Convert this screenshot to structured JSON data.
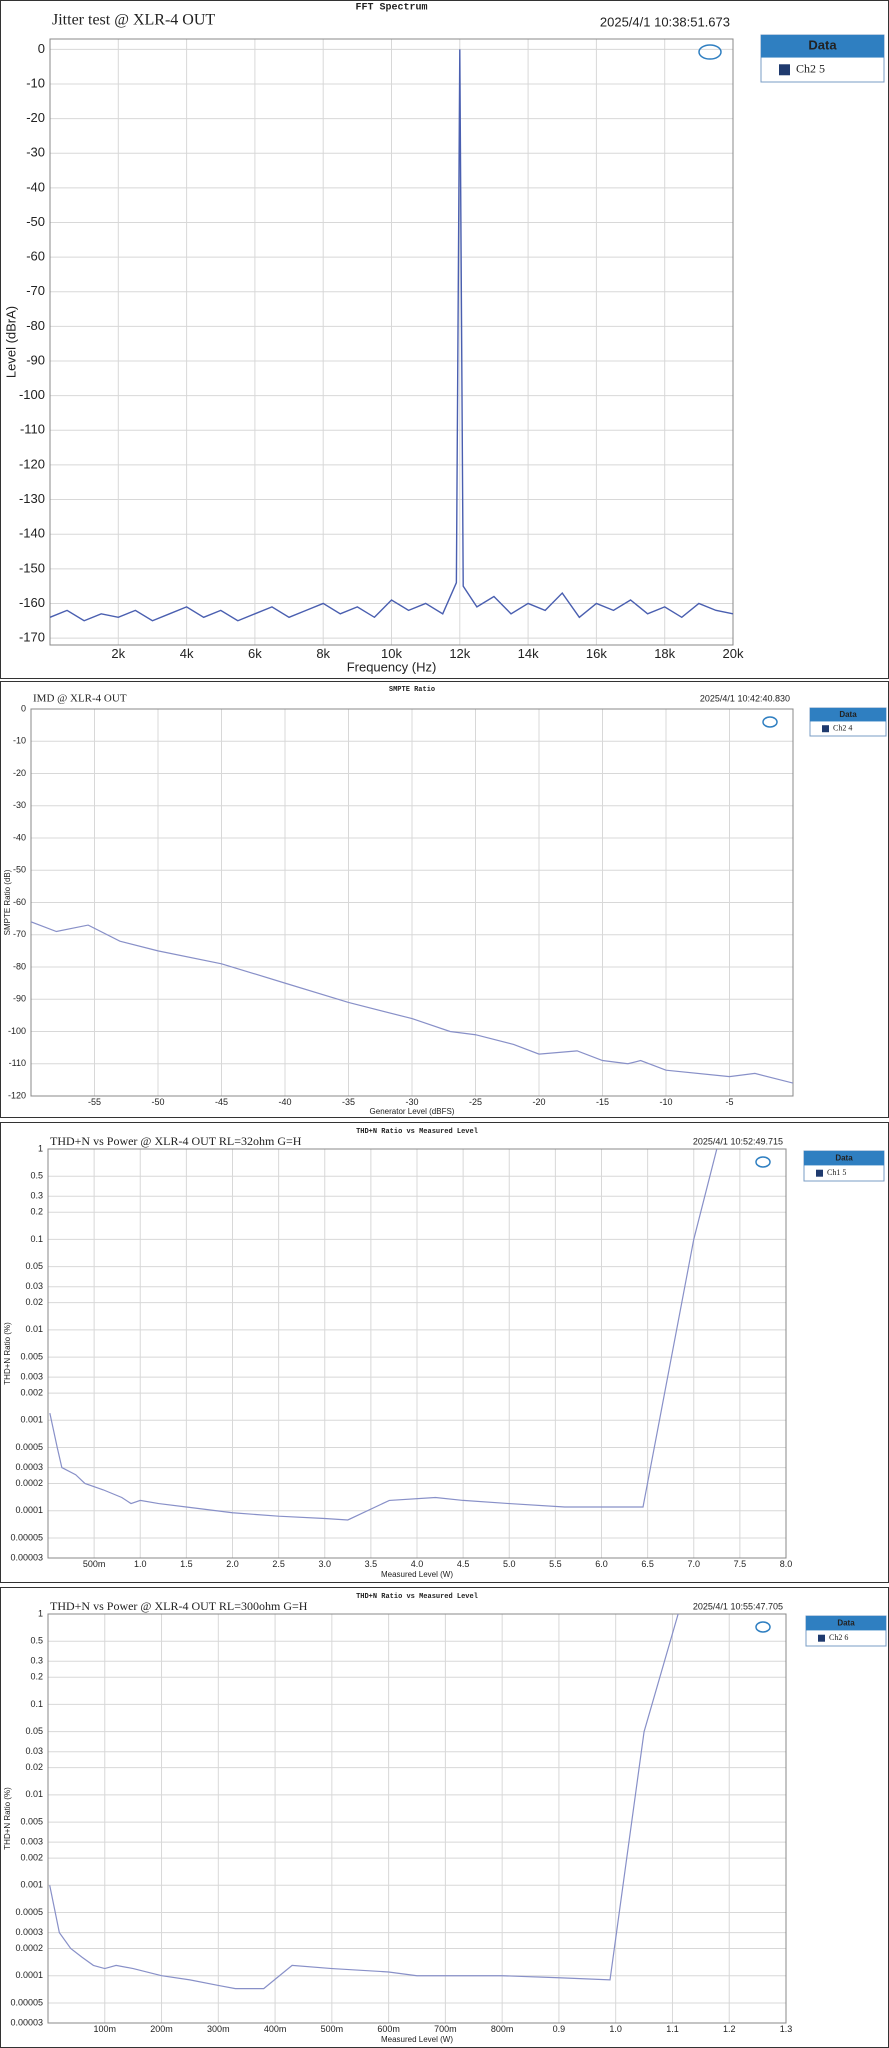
{
  "chart_data": [
    {
      "type": "line",
      "title": "FFT Spectrum",
      "subtitle": "Jitter test @ XLR-4  OUT",
      "timestamp": "2025/4/1 10:38:51.673",
      "xlabel": "Frequency (Hz)",
      "ylabel": "Level (dBrA)",
      "legend_title": "Data",
      "grid": true,
      "x": [
        0,
        500,
        1000,
        1500,
        2000,
        2500,
        3000,
        3500,
        4000,
        4500,
        5000,
        5500,
        6000,
        6500,
        7000,
        7500,
        8000,
        8500,
        9000,
        9500,
        10000,
        10500,
        11000,
        11500,
        11900,
        12000,
        12100,
        12500,
        13000,
        13500,
        14000,
        14500,
        15000,
        15500,
        16000,
        16500,
        17000,
        17500,
        18000,
        18500,
        19000,
        19500,
        20000
      ],
      "series": [
        {
          "name": "Ch2 5",
          "color": "#4a5fb0",
          "values": [
            -164,
            -162,
            -165,
            -163,
            -164,
            -162,
            -165,
            -163,
            -161,
            -164,
            -162,
            -165,
            -163,
            -161,
            -164,
            -162,
            -160,
            -163,
            -161,
            -164,
            -159,
            -162,
            -160,
            -163,
            -154,
            0,
            -155,
            -161,
            -158,
            -163,
            -160,
            -162,
            -157,
            -164,
            -160,
            -162,
            -159,
            -163,
            -161,
            -164,
            -160,
            -162,
            -163
          ]
        }
      ],
      "xlim": [
        0,
        20000
      ],
      "ylim": [
        -172,
        3
      ],
      "xticks": [
        {
          "value": 2000,
          "label": "2k"
        },
        {
          "value": 4000,
          "label": "4k"
        },
        {
          "value": 6000,
          "label": "6k"
        },
        {
          "value": 8000,
          "label": "8k"
        },
        {
          "value": 10000,
          "label": "10k"
        },
        {
          "value": 12000,
          "label": "12k"
        },
        {
          "value": 14000,
          "label": "14k"
        },
        {
          "value": 16000,
          "label": "16k"
        },
        {
          "value": 18000,
          "label": "18k"
        },
        {
          "value": 20000,
          "label": "20k"
        }
      ],
      "yticks": [
        0,
        -10,
        -20,
        -30,
        -40,
        -50,
        -60,
        -70,
        -80,
        -90,
        -100,
        -110,
        -120,
        -130,
        -140,
        -150,
        -160,
        -170
      ]
    },
    {
      "type": "line",
      "title": "SMPTE Ratio",
      "subtitle": "IMD @ XLR-4 OUT",
      "timestamp": "2025/4/1 10:42:40.830",
      "xlabel": "Generator Level (dBFS)",
      "ylabel": "SMPTE Ratio (dB)",
      "legend_title": "Data",
      "grid": true,
      "x": [
        -60,
        -58,
        -55.5,
        -53,
        -50,
        -45,
        -40,
        -35,
        -30,
        -27,
        -25,
        -22,
        -20,
        -17,
        -15,
        -13,
        -12,
        -10,
        -5,
        -3,
        0
      ],
      "series": [
        {
          "name": "Ch2 4",
          "color": "#8890c8",
          "values": [
            -66,
            -69,
            -67,
            -72,
            -75,
            -79,
            -85,
            -91,
            -96,
            -100,
            -101,
            -104,
            -107,
            -106,
            -109,
            -110,
            -109,
            -112,
            -114,
            -113,
            -116
          ]
        }
      ],
      "xlim": [
        -60,
        0
      ],
      "ylim": [
        -120,
        0
      ],
      "xticks": [
        -55,
        -50,
        -45,
        -40,
        -35,
        -30,
        -25,
        -20,
        -15,
        -10,
        -5
      ],
      "yticks": [
        0,
        -10,
        -20,
        -30,
        -40,
        -50,
        -60,
        -70,
        -80,
        -90,
        -100,
        -110,
        -120
      ]
    },
    {
      "type": "line",
      "title": "THD+N Ratio vs Measured Level",
      "subtitle": "THD+N  vs Power @ XLR-4 OUT  RL=32ohm G=H",
      "timestamp": "2025/4/1 10:52:49.715",
      "xlabel": "Measured Level (W)",
      "ylabel": "THD+N Ratio (%)",
      "legend_title": "Data",
      "grid": true,
      "yscale": "log",
      "x": [
        0.02,
        0.1,
        0.15,
        0.3,
        0.4,
        0.6,
        0.8,
        0.9,
        1.0,
        1.2,
        1.5,
        2.0,
        2.5,
        3.0,
        3.25,
        3.7,
        4.2,
        4.5,
        5.0,
        5.6,
        6.0,
        6.45,
        7.0,
        7.25
      ],
      "series": [
        {
          "name": "Ch1 5",
          "color": "#8890c8",
          "values": [
            0.0012,
            0.0005,
            0.0003,
            0.00025,
            0.0002,
            0.00017,
            0.00014,
            0.00012,
            0.00013,
            0.00012,
            0.00011,
            9.5e-05,
            8.7e-05,
            8.2e-05,
            7.9e-05,
            0.00013,
            0.00014,
            0.00013,
            0.00012,
            0.00011,
            0.00011,
            0.00011,
            0.1,
            1
          ]
        }
      ],
      "xlim": [
        0,
        8
      ],
      "ylim": [
        3e-05,
        1
      ],
      "xticks": [
        {
          "value": 0.5,
          "label": "500m"
        },
        {
          "value": 1,
          "label": "1.0"
        },
        1.5,
        {
          "value": 2,
          "label": "2.0"
        },
        2.5,
        {
          "value": 3,
          "label": "3.0"
        },
        3.5,
        {
          "value": 4,
          "label": "4.0"
        },
        4.5,
        {
          "value": 5,
          "label": "5.0"
        },
        5.5,
        {
          "value": 6,
          "label": "6.0"
        },
        6.5,
        {
          "value": 7,
          "label": "7.0"
        },
        7.5,
        {
          "value": 8,
          "label": "8.0"
        }
      ],
      "yticks": [
        1,
        0.5,
        0.3,
        0.2,
        0.1,
        0.05,
        0.03,
        0.02,
        0.01,
        0.005,
        0.003,
        0.002,
        0.001,
        0.0005,
        0.0003,
        0.0002,
        0.0001,
        5e-05,
        3e-05
      ]
    },
    {
      "type": "line",
      "title": "THD+N Ratio vs Measured Level",
      "subtitle": "THD+N  vs Power @ XLR-4 OUT  RL=300ohm  G=H",
      "timestamp": "2025/4/1 10:55:47.705",
      "xlabel": "Measured Level (W)",
      "ylabel": "THD+N Ratio (%)",
      "legend_title": "Data",
      "grid": true,
      "yscale": "log",
      "x": [
        0.003,
        0.02,
        0.04,
        0.06,
        0.08,
        0.1,
        0.12,
        0.15,
        0.2,
        0.25,
        0.3,
        0.33,
        0.38,
        0.43,
        0.5,
        0.6,
        0.65,
        0.7,
        0.8,
        0.9,
        0.99,
        1.05,
        1.11
      ],
      "series": [
        {
          "name": "Ch2 6",
          "color": "#8890c8",
          "values": [
            0.001,
            0.0003,
            0.0002,
            0.00016,
            0.00013,
            0.00012,
            0.00013,
            0.00012,
            0.0001,
            9e-05,
            7.8e-05,
            7.2e-05,
            7.2e-05,
            0.00013,
            0.00012,
            0.00011,
            0.0001,
            0.0001,
            0.0001,
            9.5e-05,
            9e-05,
            0.05,
            1
          ]
        }
      ],
      "xlim": [
        0,
        1.3
      ],
      "ylim": [
        3e-05,
        1
      ],
      "xticks": [
        {
          "value": 0.1,
          "label": "100m"
        },
        {
          "value": 0.2,
          "label": "200m"
        },
        {
          "value": 0.3,
          "label": "300m"
        },
        {
          "value": 0.4,
          "label": "400m"
        },
        {
          "value": 0.5,
          "label": "500m"
        },
        {
          "value": 0.6,
          "label": "600m"
        },
        {
          "value": 0.7,
          "label": "700m"
        },
        {
          "value": 0.8,
          "label": "800m"
        },
        0.9,
        {
          "value": 1,
          "label": "1.0"
        },
        1.1,
        1.2,
        1.3
      ],
      "yticks": [
        1,
        0.5,
        0.3,
        0.2,
        0.1,
        0.05,
        0.03,
        0.02,
        0.01,
        0.005,
        0.003,
        0.002,
        0.001,
        0.0005,
        0.0003,
        0.0002,
        0.0001,
        5e-05,
        3e-05
      ]
    }
  ]
}
